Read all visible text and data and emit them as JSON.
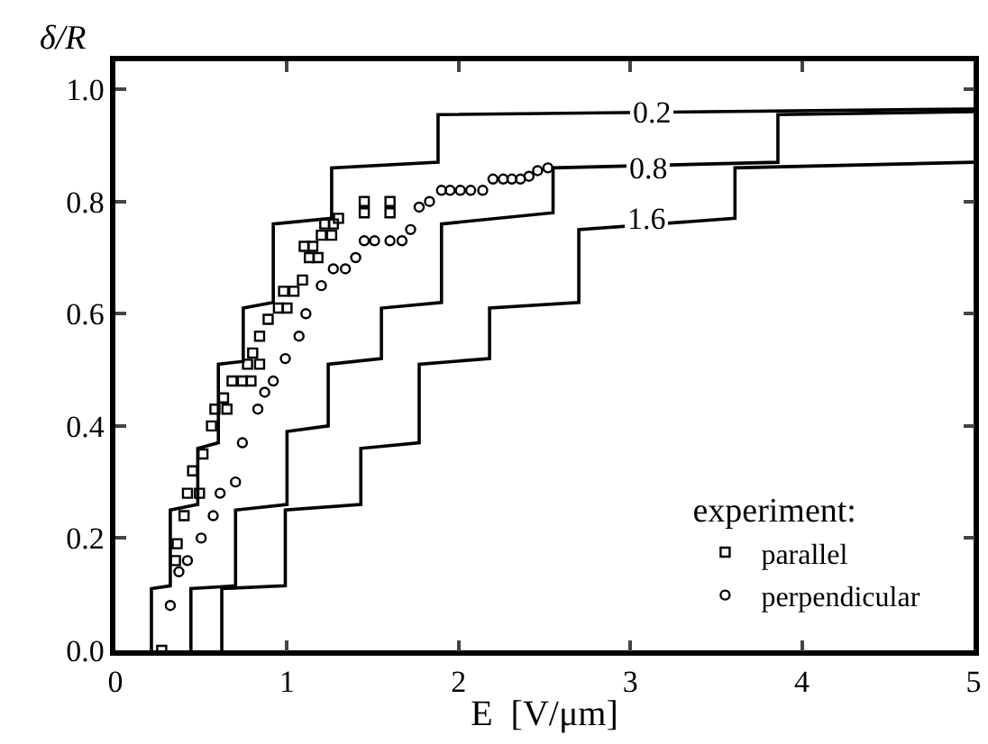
{
  "chart_data": {
    "type": "line",
    "xlabel": "E  [V/μm]",
    "ylabel": "δ/R",
    "legend_title": "experiment:",
    "legend": "bottom right",
    "grid": false,
    "xlim": [
      0,
      5
    ],
    "xticks": [
      0,
      1,
      2,
      3,
      4,
      5
    ],
    "ylim": [
      0,
      1.05
    ],
    "yticks": [
      {
        "value": 0,
        "label": "0.0"
      },
      {
        "value": 0.2,
        "label": "0.2"
      },
      {
        "value": 0.4,
        "label": "0.4"
      },
      {
        "value": 0.6,
        "label": "0.6"
      },
      {
        "value": 0.8,
        "label": "0.8"
      },
      {
        "value": 1,
        "label": "1.0"
      }
    ],
    "annotations": [
      {
        "text": "0.2",
        "x": 3.12,
        "y": 0.96
      },
      {
        "text": "0.8",
        "x": 3.1,
        "y": 0.86
      },
      {
        "text": "1.6",
        "x": 3.09,
        "y": 0.77
      }
    ],
    "series": [
      {
        "color": "#000000",
        "line_style": "solid",
        "marker": "none",
        "x": [
          0.21,
          0.21,
          0.32,
          0.32,
          0.48,
          0.48,
          0.6,
          0.6,
          0.745,
          0.745,
          0.92,
          0.92,
          1.26,
          1.26,
          1.88,
          1.88,
          5
        ],
        "values": [
          0,
          0.11,
          0.115,
          0.25,
          0.26,
          0.36,
          0.37,
          0.51,
          0.515,
          0.61,
          0.62,
          0.76,
          0.77,
          0.86,
          0.87,
          0.955,
          0.965
        ]
      },
      {
        "color": "#000000",
        "line_style": "solid",
        "marker": "none",
        "x": [
          0.44,
          0.44,
          0.7,
          0.7,
          1.0,
          1.0,
          1.24,
          1.24,
          1.55,
          1.55,
          1.9,
          1.9,
          2.55,
          2.55,
          3.86,
          3.86,
          5
        ],
        "values": [
          0,
          0.11,
          0.115,
          0.25,
          0.26,
          0.39,
          0.4,
          0.51,
          0.52,
          0.61,
          0.62,
          0.76,
          0.78,
          0.86,
          0.87,
          0.955,
          0.96
        ]
      },
      {
        "color": "#000000",
        "line_style": "solid",
        "marker": "none",
        "x": [
          0.62,
          0.62,
          0.99,
          0.99,
          1.43,
          1.43,
          1.77,
          1.77,
          2.18,
          2.18,
          2.7,
          2.7,
          3.61,
          3.61,
          5
        ],
        "values": [
          0,
          0.11,
          0.115,
          0.25,
          0.26,
          0.36,
          0.37,
          0.51,
          0.52,
          0.61,
          0.62,
          0.75,
          0.77,
          0.86,
          0.87
        ]
      },
      {
        "type": "scatter",
        "name": "parallel",
        "color": "#000000",
        "marker": "square",
        "x": [
          0.27,
          0.35,
          0.36,
          0.4,
          0.42,
          0.49,
          0.45,
          0.51,
          0.56,
          0.58,
          0.65,
          0.63,
          0.68,
          0.74,
          0.79,
          0.77,
          0.84,
          0.8,
          0.84,
          0.89,
          0.95,
          1.0,
          0.98,
          1.04,
          1.09,
          1.13,
          1.18,
          1.1,
          1.15,
          1.2,
          1.26,
          1.22,
          1.27,
          1.3,
          1.45,
          1.45,
          1.6,
          1.6
        ],
        "values": [
          0.0,
          0.16,
          0.19,
          0.24,
          0.28,
          0.28,
          0.32,
          0.35,
          0.4,
          0.43,
          0.43,
          0.45,
          0.48,
          0.48,
          0.48,
          0.51,
          0.51,
          0.53,
          0.56,
          0.59,
          0.61,
          0.61,
          0.64,
          0.64,
          0.66,
          0.7,
          0.7,
          0.72,
          0.72,
          0.74,
          0.74,
          0.76,
          0.76,
          0.77,
          0.78,
          0.8,
          0.78,
          0.8
        ]
      },
      {
        "type": "scatter",
        "name": "perpendicular",
        "color": "#000000",
        "marker": "circle",
        "x": [
          0.32,
          0.37,
          0.42,
          0.5,
          0.57,
          0.61,
          0.7,
          0.74,
          0.83,
          0.87,
          0.92,
          0.99,
          1.07,
          1.11,
          1.2,
          1.27,
          1.34,
          1.4,
          1.45,
          1.51,
          1.6,
          1.67,
          1.72,
          1.77,
          1.83,
          1.9,
          1.95,
          2.01,
          2.07,
          2.14,
          2.2,
          2.26,
          2.31,
          2.36,
          2.41,
          2.46,
          2.52
        ],
        "values": [
          0.08,
          0.14,
          0.16,
          0.2,
          0.24,
          0.28,
          0.3,
          0.37,
          0.43,
          0.46,
          0.48,
          0.52,
          0.56,
          0.6,
          0.65,
          0.68,
          0.68,
          0.7,
          0.73,
          0.73,
          0.73,
          0.73,
          0.75,
          0.79,
          0.8,
          0.82,
          0.82,
          0.82,
          0.82,
          0.82,
          0.84,
          0.84,
          0.84,
          0.84,
          0.845,
          0.855,
          0.86
        ]
      }
    ]
  }
}
